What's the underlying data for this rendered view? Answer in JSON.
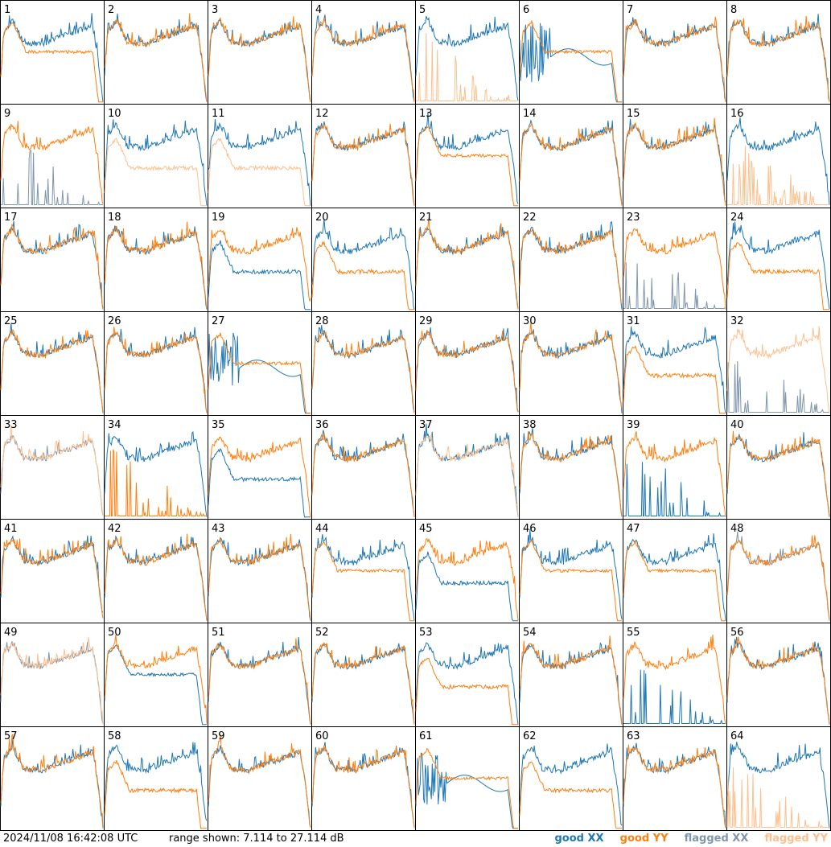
{
  "footer": {
    "timestamp": "2024/11/08 16:42:08 UTC",
    "range_text": "range shown: 7.114 to 27.114 dB"
  },
  "legend": {
    "good_xx": "good XX",
    "good_yy": "good YY",
    "flagged_xx": "flagged XX",
    "flagged_yy": "flagged YY"
  },
  "colors": {
    "good_xx": "#1f77b4",
    "good_yy": "#ff7f0e",
    "flagged_xx": "#7f96ad",
    "flagged_yy": "#fcc08e"
  },
  "chart_data": {
    "type": "line",
    "grid": "8x8 small multiples",
    "y_range_db": [
      7.114,
      27.114
    ],
    "panels": [
      {
        "label": "1",
        "xx": "good",
        "yy": "good",
        "style": "droopYY"
      },
      {
        "label": "2",
        "xx": "good",
        "yy": "good",
        "style": "normal"
      },
      {
        "label": "3",
        "xx": "good",
        "yy": "good",
        "style": "normal"
      },
      {
        "label": "4",
        "xx": "good",
        "yy": "good",
        "style": "normal"
      },
      {
        "label": "5",
        "xx": "good",
        "yy": "flagged",
        "style": "deadYY"
      },
      {
        "label": "6",
        "xx": "good",
        "yy": "good",
        "style": "wobbleXX"
      },
      {
        "label": "7",
        "xx": "good",
        "yy": "good",
        "style": "normal"
      },
      {
        "label": "8",
        "xx": "good",
        "yy": "good",
        "style": "normal"
      },
      {
        "label": "9",
        "xx": "flagged",
        "yy": "good",
        "style": "deadXX"
      },
      {
        "label": "10",
        "xx": "good",
        "yy": "flagged",
        "style": "lowYY"
      },
      {
        "label": "11",
        "xx": "good",
        "yy": "flagged",
        "style": "lowYY"
      },
      {
        "label": "12",
        "xx": "good",
        "yy": "good",
        "style": "normal"
      },
      {
        "label": "13",
        "xx": "good",
        "yy": "good",
        "style": "droopYY"
      },
      {
        "label": "14",
        "xx": "good",
        "yy": "good",
        "style": "normal"
      },
      {
        "label": "15",
        "xx": "good",
        "yy": "good",
        "style": "normal"
      },
      {
        "label": "16",
        "xx": "good",
        "yy": "flagged",
        "style": "deadYY"
      },
      {
        "label": "17",
        "xx": "good",
        "yy": "good",
        "style": "normal"
      },
      {
        "label": "18",
        "xx": "good",
        "yy": "good",
        "style": "normal"
      },
      {
        "label": "19",
        "xx": "good",
        "yy": "good",
        "style": "lowXX"
      },
      {
        "label": "20",
        "xx": "good",
        "yy": "good",
        "style": "lowYY"
      },
      {
        "label": "21",
        "xx": "good",
        "yy": "good",
        "style": "normal"
      },
      {
        "label": "22",
        "xx": "good",
        "yy": "good",
        "style": "normal"
      },
      {
        "label": "23",
        "xx": "flagged",
        "yy": "good",
        "style": "deadXX"
      },
      {
        "label": "24",
        "xx": "good",
        "yy": "good",
        "style": "lowYY"
      },
      {
        "label": "25",
        "xx": "good",
        "yy": "good",
        "style": "normal"
      },
      {
        "label": "26",
        "xx": "good",
        "yy": "good",
        "style": "normal"
      },
      {
        "label": "27",
        "xx": "good",
        "yy": "good",
        "style": "wobbleXX"
      },
      {
        "label": "28",
        "xx": "good",
        "yy": "good",
        "style": "normal"
      },
      {
        "label": "29",
        "xx": "good",
        "yy": "good",
        "style": "normal"
      },
      {
        "label": "30",
        "xx": "good",
        "yy": "good",
        "style": "normal"
      },
      {
        "label": "31",
        "xx": "good",
        "yy": "good",
        "style": "lowYY"
      },
      {
        "label": "32",
        "xx": "flagged",
        "yy": "flagged",
        "style": "deadXX"
      },
      {
        "label": "33",
        "xx": "flagged",
        "yy": "flagged",
        "style": "normal"
      },
      {
        "label": "34",
        "xx": "good",
        "yy": "good",
        "style": "deadYY"
      },
      {
        "label": "35",
        "xx": "good",
        "yy": "good",
        "style": "lowXX"
      },
      {
        "label": "36",
        "xx": "good",
        "yy": "good",
        "style": "normal"
      },
      {
        "label": "37",
        "xx": "good",
        "yy": "flagged",
        "style": "normal"
      },
      {
        "label": "38",
        "xx": "good",
        "yy": "good",
        "style": "normal"
      },
      {
        "label": "39",
        "xx": "good",
        "yy": "good",
        "style": "deadXX"
      },
      {
        "label": "40",
        "xx": "good",
        "yy": "good",
        "style": "normal"
      },
      {
        "label": "41",
        "xx": "good",
        "yy": "good",
        "style": "normal"
      },
      {
        "label": "42",
        "xx": "good",
        "yy": "good",
        "style": "normal"
      },
      {
        "label": "43",
        "xx": "good",
        "yy": "good",
        "style": "normal"
      },
      {
        "label": "44",
        "xx": "good",
        "yy": "good",
        "style": "droopYY"
      },
      {
        "label": "45",
        "xx": "good",
        "yy": "good",
        "style": "lowXX"
      },
      {
        "label": "46",
        "xx": "good",
        "yy": "good",
        "style": "droopYY"
      },
      {
        "label": "47",
        "xx": "good",
        "yy": "good",
        "style": "droopYY"
      },
      {
        "label": "48",
        "xx": "flagged",
        "yy": "good",
        "style": "normal"
      },
      {
        "label": "49",
        "xx": "flagged",
        "yy": "flagged",
        "style": "normal"
      },
      {
        "label": "50",
        "xx": "good",
        "yy": "good",
        "style": "droopXX"
      },
      {
        "label": "51",
        "xx": "good",
        "yy": "good",
        "style": "normal"
      },
      {
        "label": "52",
        "xx": "good",
        "yy": "good",
        "style": "normal"
      },
      {
        "label": "53",
        "xx": "good",
        "yy": "good",
        "style": "lowYY"
      },
      {
        "label": "54",
        "xx": "good",
        "yy": "good",
        "style": "normal"
      },
      {
        "label": "55",
        "xx": "good",
        "yy": "good",
        "style": "deadXX"
      },
      {
        "label": "56",
        "xx": "good",
        "yy": "good",
        "style": "normal"
      },
      {
        "label": "57",
        "xx": "good",
        "yy": "good",
        "style": "normal"
      },
      {
        "label": "58",
        "xx": "good",
        "yy": "good",
        "style": "lowYY"
      },
      {
        "label": "59",
        "xx": "good",
        "yy": "good",
        "style": "normal"
      },
      {
        "label": "60",
        "xx": "good",
        "yy": "good",
        "style": "normal"
      },
      {
        "label": "61",
        "xx": "good",
        "yy": "good",
        "style": "wobbleXX"
      },
      {
        "label": "62",
        "xx": "good",
        "yy": "good",
        "style": "lowYY"
      },
      {
        "label": "63",
        "xx": "good",
        "yy": "good",
        "style": "normal"
      },
      {
        "label": "64",
        "xx": "good",
        "yy": "flagged",
        "style": "deadYY"
      }
    ]
  }
}
